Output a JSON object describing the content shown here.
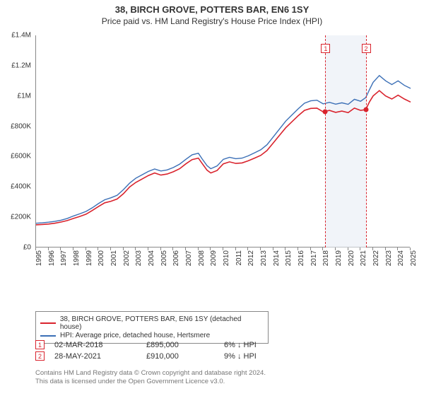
{
  "title": "38, BIRCH GROVE, POTTERS BAR, EN6 1SY",
  "subtitle": "Price paid vs. HM Land Registry's House Price Index (HPI)",
  "chart": {
    "type": "line",
    "x_start_year": 1995,
    "x_end_year": 2025,
    "y_min": 0,
    "y_max": 1400000,
    "y_ticks": [
      {
        "v": 0,
        "label": "£0"
      },
      {
        "v": 200000,
        "label": "£200K"
      },
      {
        "v": 400000,
        "label": "£400K"
      },
      {
        "v": 600000,
        "label": "£600K"
      },
      {
        "v": 800000,
        "label": "£800K"
      },
      {
        "v": 1000000,
        "label": "£1M"
      },
      {
        "v": 1200000,
        "label": "£1.2M"
      },
      {
        "v": 1400000,
        "label": "£1.4M"
      }
    ],
    "x_ticks": [
      1995,
      1996,
      1997,
      1998,
      1999,
      2000,
      2001,
      2002,
      2003,
      2004,
      2005,
      2006,
      2007,
      2008,
      2009,
      2010,
      2011,
      2012,
      2013,
      2014,
      2015,
      2016,
      2017,
      2018,
      2019,
      2020,
      2021,
      2022,
      2023,
      2024,
      2025
    ],
    "highlight_band": {
      "from_year": 2018.17,
      "to_year": 2021.41,
      "fill": "#e8edf5"
    },
    "series": [
      {
        "id": "property",
        "label": "38, BIRCH GROVE, POTTERS BAR, EN6 1SY (detached house)",
        "color": "#d9232d",
        "line_width": 1.6,
        "data": [
          [
            1995.0,
            150000
          ],
          [
            1995.5,
            152000
          ],
          [
            1996.0,
            155000
          ],
          [
            1996.5,
            160000
          ],
          [
            1997.0,
            168000
          ],
          [
            1997.5,
            178000
          ],
          [
            1998.0,
            192000
          ],
          [
            1998.5,
            205000
          ],
          [
            1999.0,
            220000
          ],
          [
            1999.5,
            244000
          ],
          [
            2000.0,
            270000
          ],
          [
            2000.5,
            295000
          ],
          [
            2001.0,
            305000
          ],
          [
            2001.5,
            320000
          ],
          [
            2002.0,
            355000
          ],
          [
            2002.5,
            400000
          ],
          [
            2003.0,
            430000
          ],
          [
            2003.5,
            452000
          ],
          [
            2004.0,
            475000
          ],
          [
            2004.5,
            492000
          ],
          [
            2005.0,
            478000
          ],
          [
            2005.5,
            485000
          ],
          [
            2006.0,
            500000
          ],
          [
            2006.5,
            520000
          ],
          [
            2007.0,
            552000
          ],
          [
            2007.5,
            580000
          ],
          [
            2008.0,
            590000
          ],
          [
            2008.3,
            555000
          ],
          [
            2008.7,
            510000
          ],
          [
            2009.0,
            492000
          ],
          [
            2009.5,
            508000
          ],
          [
            2010.0,
            552000
          ],
          [
            2010.5,
            565000
          ],
          [
            2011.0,
            555000
          ],
          [
            2011.5,
            558000
          ],
          [
            2012.0,
            572000
          ],
          [
            2012.5,
            590000
          ],
          [
            2013.0,
            608000
          ],
          [
            2013.5,
            640000
          ],
          [
            2014.0,
            690000
          ],
          [
            2014.5,
            740000
          ],
          [
            2015.0,
            790000
          ],
          [
            2015.5,
            830000
          ],
          [
            2016.0,
            870000
          ],
          [
            2016.5,
            905000
          ],
          [
            2017.0,
            918000
          ],
          [
            2017.5,
            920000
          ],
          [
            2018.0,
            895000
          ],
          [
            2018.5,
            905000
          ],
          [
            2019.0,
            892000
          ],
          [
            2019.5,
            900000
          ],
          [
            2020.0,
            890000
          ],
          [
            2020.5,
            920000
          ],
          [
            2021.0,
            905000
          ],
          [
            2021.41,
            910000
          ],
          [
            2021.7,
            960000
          ],
          [
            2022.0,
            1000000
          ],
          [
            2022.5,
            1035000
          ],
          [
            2023.0,
            1000000
          ],
          [
            2023.5,
            980000
          ],
          [
            2024.0,
            1005000
          ],
          [
            2024.5,
            980000
          ],
          [
            2025.0,
            960000
          ]
        ]
      },
      {
        "id": "hpi",
        "label": "HPI: Average price, detached house, Hertsmere",
        "color": "#3b6fb6",
        "line_width": 1.4,
        "data": [
          [
            1995.0,
            160000
          ],
          [
            1995.5,
            163000
          ],
          [
            1996.0,
            167000
          ],
          [
            1996.5,
            172000
          ],
          [
            1997.0,
            180000
          ],
          [
            1997.5,
            192000
          ],
          [
            1998.0,
            208000
          ],
          [
            1998.5,
            222000
          ],
          [
            1999.0,
            238000
          ],
          [
            1999.5,
            262000
          ],
          [
            2000.0,
            290000
          ],
          [
            2000.5,
            315000
          ],
          [
            2001.0,
            328000
          ],
          [
            2001.5,
            345000
          ],
          [
            2002.0,
            382000
          ],
          [
            2002.5,
            425000
          ],
          [
            2003.0,
            458000
          ],
          [
            2003.5,
            480000
          ],
          [
            2004.0,
            502000
          ],
          [
            2004.5,
            518000
          ],
          [
            2005.0,
            505000
          ],
          [
            2005.5,
            512000
          ],
          [
            2006.0,
            528000
          ],
          [
            2006.5,
            550000
          ],
          [
            2007.0,
            582000
          ],
          [
            2007.5,
            612000
          ],
          [
            2008.0,
            622000
          ],
          [
            2008.3,
            585000
          ],
          [
            2008.7,
            540000
          ],
          [
            2009.0,
            520000
          ],
          [
            2009.5,
            538000
          ],
          [
            2010.0,
            582000
          ],
          [
            2010.5,
            595000
          ],
          [
            2011.0,
            586000
          ],
          [
            2011.5,
            590000
          ],
          [
            2012.0,
            605000
          ],
          [
            2012.5,
            625000
          ],
          [
            2013.0,
            645000
          ],
          [
            2013.5,
            678000
          ],
          [
            2014.0,
            730000
          ],
          [
            2014.5,
            782000
          ],
          [
            2015.0,
            834000
          ],
          [
            2015.5,
            875000
          ],
          [
            2016.0,
            915000
          ],
          [
            2016.5,
            952000
          ],
          [
            2017.0,
            968000
          ],
          [
            2017.5,
            972000
          ],
          [
            2018.0,
            948000
          ],
          [
            2018.5,
            958000
          ],
          [
            2019.0,
            946000
          ],
          [
            2019.5,
            955000
          ],
          [
            2020.0,
            945000
          ],
          [
            2020.5,
            978000
          ],
          [
            2021.0,
            965000
          ],
          [
            2021.41,
            990000
          ],
          [
            2021.7,
            1040000
          ],
          [
            2022.0,
            1090000
          ],
          [
            2022.5,
            1135000
          ],
          [
            2023.0,
            1100000
          ],
          [
            2023.5,
            1075000
          ],
          [
            2024.0,
            1100000
          ],
          [
            2024.5,
            1070000
          ],
          [
            2025.0,
            1050000
          ]
        ]
      }
    ],
    "sale_markers": [
      {
        "n": "1",
        "year": 2018.17,
        "price": 895000,
        "color": "#d9232d"
      },
      {
        "n": "2",
        "year": 2021.41,
        "price": 910000,
        "color": "#d9232d"
      }
    ],
    "vline_color": "#d9232d",
    "background_color": "#ffffff",
    "label_fontsize": 10
  },
  "legend": {
    "items": [
      {
        "color": "#d9232d",
        "label": "38, BIRCH GROVE, POTTERS BAR, EN6 1SY (detached house)"
      },
      {
        "color": "#3b6fb6",
        "label": "HPI: Average price, detached house, Hertsmere"
      }
    ]
  },
  "sales": [
    {
      "n": "1",
      "color": "#d9232d",
      "date": "02-MAR-2018",
      "price": "£895,000",
      "diff": "6% ↓ HPI"
    },
    {
      "n": "2",
      "color": "#d9232d",
      "date": "28-MAY-2021",
      "price": "£910,000",
      "diff": "9% ↓ HPI"
    }
  ],
  "footer": {
    "line1": "Contains HM Land Registry data © Crown copyright and database right 2024.",
    "line2": "This data is licensed under the Open Government Licence v3.0."
  }
}
